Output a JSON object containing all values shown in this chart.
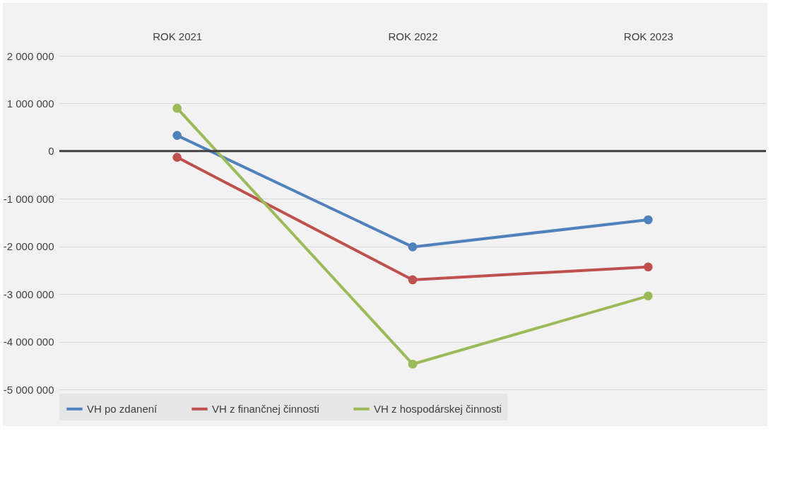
{
  "chart_data": {
    "type": "line",
    "categories": [
      "ROK 2021",
      "ROK 2022",
      "ROK 2023"
    ],
    "series": [
      {
        "name": "VH po zdanení",
        "color": "#4f81bd",
        "values": [
          330000,
          -2010000,
          -1440000
        ]
      },
      {
        "name": "VH z finančnej činnosti",
        "color": "#c0504d",
        "values": [
          -130000,
          -2700000,
          -2430000
        ]
      },
      {
        "name": "VH z hospodárskej činnosti",
        "color": "#9bbb59",
        "values": [
          900000,
          -4470000,
          -3040000
        ]
      }
    ],
    "ylim": [
      -5000000,
      2000000
    ],
    "yticks": [
      {
        "value": -5000000,
        "label": "-5 000 000"
      },
      {
        "value": -4000000,
        "label": "-4 000 000"
      },
      {
        "value": -3000000,
        "label": "-3 000 000"
      },
      {
        "value": -2000000,
        "label": "-2 000 000"
      },
      {
        "value": -1000000,
        "label": "-1 000 000"
      },
      {
        "value": 0,
        "label": "0"
      },
      {
        "value": 1000000,
        "label": "1 000 000"
      },
      {
        "value": 2000000,
        "label": "2 000 000"
      }
    ],
    "grid": "y",
    "legend": "bottom",
    "marker": "circle",
    "line_style": "solid"
  }
}
